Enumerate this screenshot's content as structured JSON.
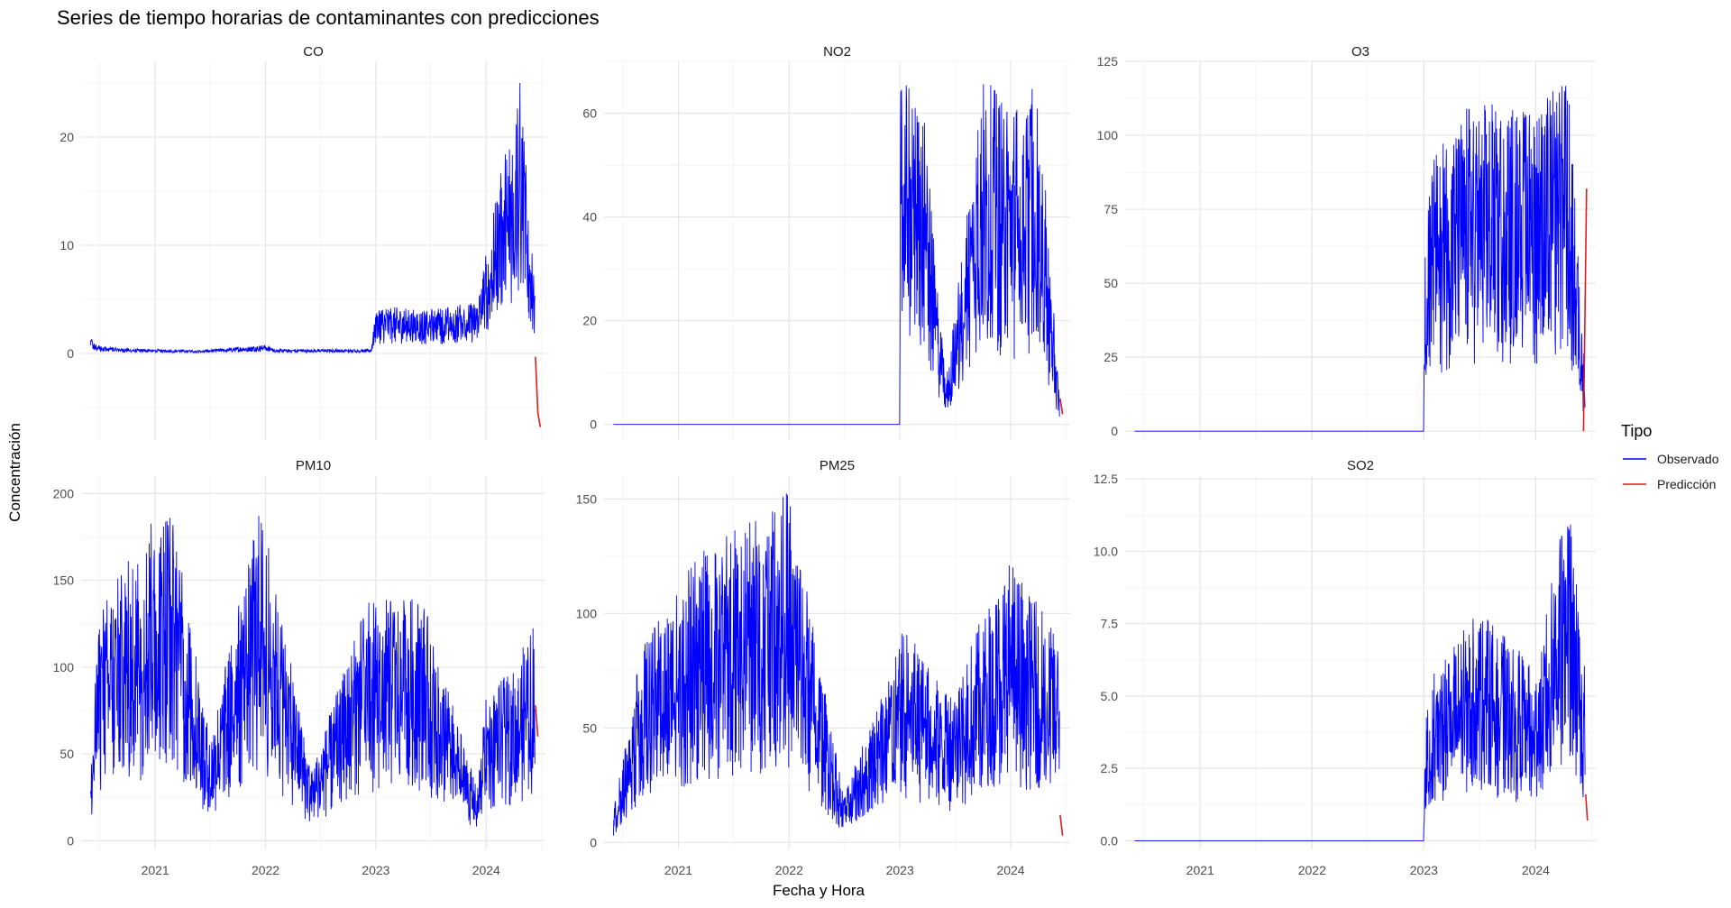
{
  "chart_data": {
    "type": "line",
    "title": "Series de tiempo horarias de contaminantes con predicciones",
    "xlabel": "Fecha y Hora",
    "ylabel": "Concentración",
    "x_range": [
      "2020-05-01",
      "2024-07-15"
    ],
    "x_ticks": [
      "2021",
      "2022",
      "2023",
      "2024"
    ],
    "grid": true,
    "legend": {
      "title": "Tipo",
      "position": "right",
      "entries": [
        {
          "label": "Observado",
          "color": "#0000ff"
        },
        {
          "label": "Predicción",
          "color": "#e41a1c"
        }
      ]
    },
    "panels": [
      {
        "name": "CO",
        "ylim": [
          -8,
          27
        ],
        "y_ticks": [
          0,
          10,
          20
        ],
        "observed": [
          {
            "x": "2020-06-01",
            "y": 1.7
          },
          {
            "x": "2020-06-15",
            "y": 0.9
          },
          {
            "x": "2020-09-01",
            "y": 0.5
          },
          {
            "x": "2021-01-01",
            "y": 0.4
          },
          {
            "x": "2021-06-01",
            "y": 0.3
          },
          {
            "x": "2022-01-01",
            "y": 0.8
          },
          {
            "x": "2022-02-01",
            "y": 0.4
          },
          {
            "x": "2022-12-15",
            "y": 0.4
          },
          {
            "x": "2023-01-05",
            "y": 4.5
          },
          {
            "x": "2023-06-01",
            "y": 4.0
          },
          {
            "x": "2023-12-01",
            "y": 4.8
          },
          {
            "x": "2024-04-20",
            "y": 26.0
          },
          {
            "x": "2024-06-10",
            "y": 6.0
          }
        ],
        "prediction": [
          {
            "x": "2024-06-12",
            "y": -0.3
          },
          {
            "x": "2024-06-20",
            "y": -5.5
          },
          {
            "x": "2024-06-28",
            "y": -6.8
          }
        ]
      },
      {
        "name": "NO2",
        "ylim": [
          -3,
          70
        ],
        "y_ticks": [
          0,
          20,
          40,
          60
        ],
        "observed": [
          {
            "x": "2020-06-01",
            "y": 0
          },
          {
            "x": "2022-12-31",
            "y": 0
          },
          {
            "x": "2023-01-03",
            "y": 66
          },
          {
            "x": "2023-03-15",
            "y": 64
          },
          {
            "x": "2023-06-01",
            "y": 8
          },
          {
            "x": "2023-10-01",
            "y": 67
          },
          {
            "x": "2024-01-01",
            "y": 62
          },
          {
            "x": "2024-04-01",
            "y": 66
          },
          {
            "x": "2024-06-10",
            "y": 5
          }
        ],
        "prediction": [
          {
            "x": "2024-06-12",
            "y": 5
          },
          {
            "x": "2024-06-20",
            "y": 2
          }
        ]
      },
      {
        "name": "O3",
        "ylim": [
          -3,
          125
        ],
        "y_ticks": [
          0,
          25,
          50,
          75,
          100,
          125
        ],
        "observed": [
          {
            "x": "2020-06-01",
            "y": 0
          },
          {
            "x": "2022-12-31",
            "y": 0
          },
          {
            "x": "2023-01-05",
            "y": 88
          },
          {
            "x": "2023-06-01",
            "y": 112
          },
          {
            "x": "2024-01-01",
            "y": 110
          },
          {
            "x": "2024-04-15",
            "y": 120
          },
          {
            "x": "2024-06-10",
            "y": 20
          }
        ],
        "prediction": [
          {
            "x": "2024-06-05",
            "y": 0
          },
          {
            "x": "2024-06-15",
            "y": 82
          }
        ]
      },
      {
        "name": "PM10",
        "ylim": [
          -5,
          210
        ],
        "y_ticks": [
          0,
          50,
          100,
          150,
          200
        ],
        "observed": [
          {
            "x": "2020-06-01",
            "y": 43
          },
          {
            "x": "2020-07-01",
            "y": 135
          },
          {
            "x": "2021-02-15",
            "y": 201
          },
          {
            "x": "2021-07-01",
            "y": 60
          },
          {
            "x": "2021-12-15",
            "y": 195
          },
          {
            "x": "2022-06-01",
            "y": 40
          },
          {
            "x": "2022-12-01",
            "y": 138
          },
          {
            "x": "2023-06-01",
            "y": 142
          },
          {
            "x": "2023-12-01",
            "y": 30
          },
          {
            "x": "2024-01-01",
            "y": 83
          },
          {
            "x": "2024-04-01",
            "y": 100
          },
          {
            "x": "2024-06-10",
            "y": 127
          }
        ],
        "prediction": [
          {
            "x": "2024-06-12",
            "y": 78
          },
          {
            "x": "2024-06-20",
            "y": 60
          }
        ]
      },
      {
        "name": "PM25",
        "ylim": [
          -3,
          160
        ],
        "y_ticks": [
          0,
          50,
          100,
          150
        ],
        "observed": [
          {
            "x": "2020-06-01",
            "y": 14
          },
          {
            "x": "2020-09-01",
            "y": 85
          },
          {
            "x": "2021-03-01",
            "y": 125
          },
          {
            "x": "2022-01-01",
            "y": 155
          },
          {
            "x": "2022-07-01",
            "y": 20
          },
          {
            "x": "2023-01-15",
            "y": 95
          },
          {
            "x": "2023-06-01",
            "y": 65
          },
          {
            "x": "2024-01-01",
            "y": 125
          },
          {
            "x": "2024-06-10",
            "y": 88
          }
        ],
        "prediction": [
          {
            "x": "2024-06-12",
            "y": 12
          },
          {
            "x": "2024-06-20",
            "y": 3
          }
        ]
      },
      {
        "name": "SO2",
        "ylim": [
          -0.3,
          12.6
        ],
        "y_ticks": [
          0.0,
          2.5,
          5.0,
          7.5,
          10.0,
          12.5
        ],
        "observed": [
          {
            "x": "2020-06-01",
            "y": 0
          },
          {
            "x": "2022-12-31",
            "y": 0
          },
          {
            "x": "2023-01-05",
            "y": 4
          },
          {
            "x": "2023-02-01",
            "y": 6
          },
          {
            "x": "2023-07-01",
            "y": 8
          },
          {
            "x": "2024-01-01",
            "y": 6
          },
          {
            "x": "2024-04-15",
            "y": 12
          },
          {
            "x": "2024-06-10",
            "y": 6
          }
        ],
        "prediction": [
          {
            "x": "2024-06-12",
            "y": 1.6
          },
          {
            "x": "2024-06-18",
            "y": 0.7
          }
        ]
      }
    ]
  }
}
